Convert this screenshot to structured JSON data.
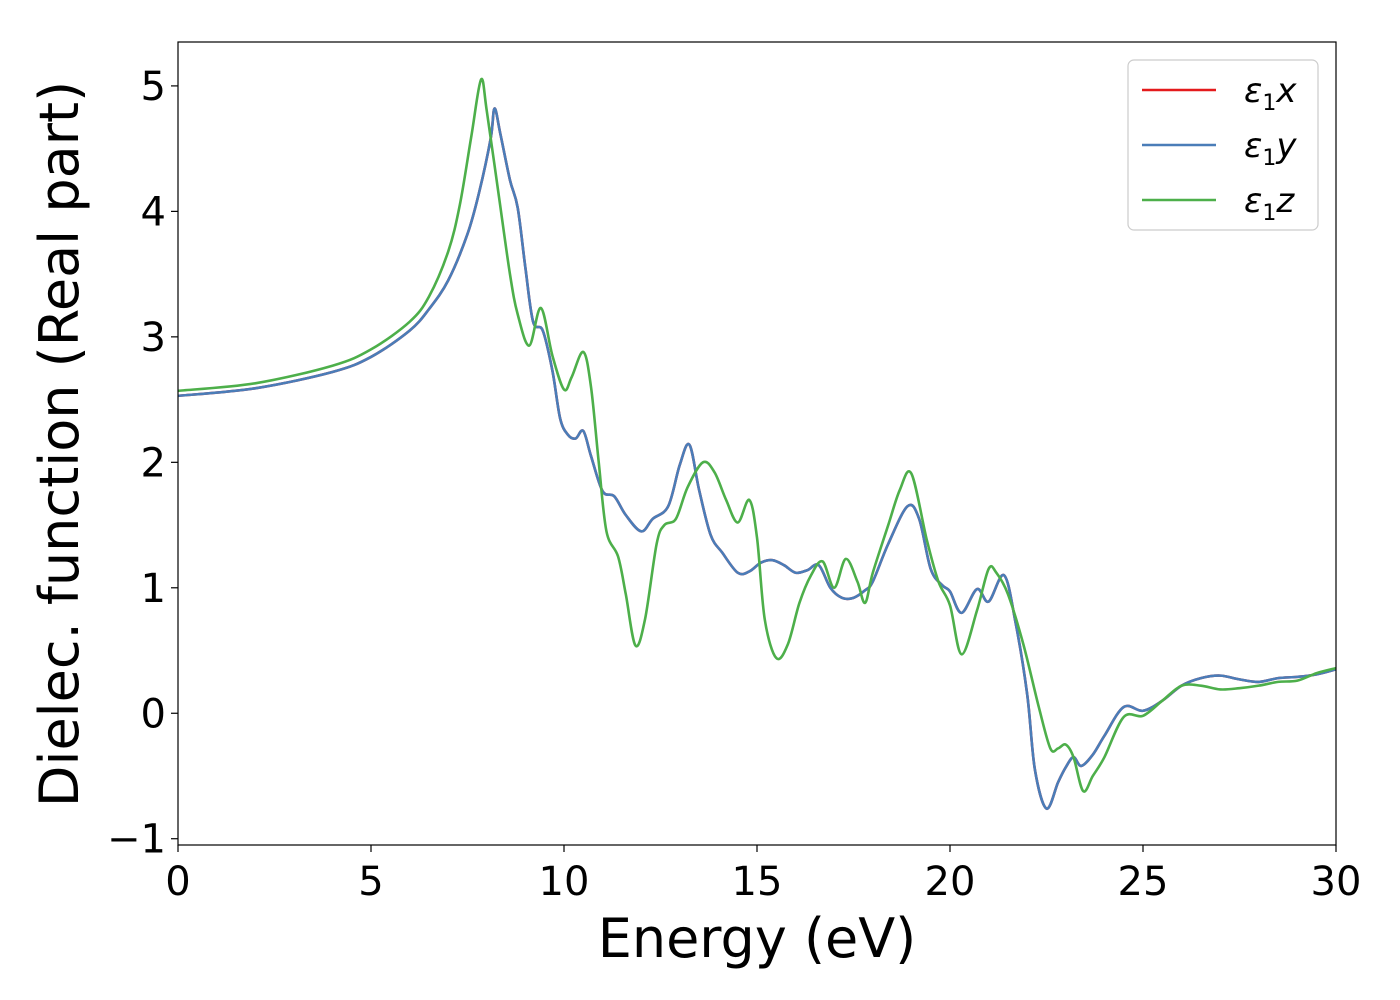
{
  "chart_data": {
    "type": "line",
    "title": "",
    "xlabel": "Energy (eV)",
    "ylabel": "Dielec. function (Real part)",
    "xlim": [
      0,
      30
    ],
    "ylim": [
      -1.05,
      5.35
    ],
    "grid": false,
    "legend_position": "top-right",
    "x_ticks": [
      {
        "value": 0,
        "label": "0"
      },
      {
        "value": 5,
        "label": "5"
      },
      {
        "value": 10,
        "label": "10"
      },
      {
        "value": 15,
        "label": "15"
      },
      {
        "value": 20,
        "label": "20"
      },
      {
        "value": 25,
        "label": "25"
      },
      {
        "value": 30,
        "label": "30"
      }
    ],
    "y_ticks": [
      {
        "value": -1,
        "label": "−1"
      },
      {
        "value": 0,
        "label": "0"
      },
      {
        "value": 1,
        "label": "1"
      },
      {
        "value": 2,
        "label": "2"
      },
      {
        "value": 3,
        "label": "3"
      },
      {
        "value": 4,
        "label": "4"
      },
      {
        "value": 5,
        "label": "5"
      }
    ],
    "series": [
      {
        "name": "ε₁x",
        "legend": {
          "base": "ε",
          "sub": "1",
          "axis": "x"
        },
        "color": "#e41a1c",
        "x": [
          0,
          2,
          4,
          5,
          6,
          6.5,
          7,
          7.5,
          7.8,
          8.1,
          8.2,
          8.35,
          8.6,
          8.8,
          9,
          9.2,
          9.45,
          9.7,
          9.9,
          10.1,
          10.3,
          10.5,
          10.7,
          11,
          11.3,
          11.6,
          12,
          12.3,
          12.7,
          13,
          13.25,
          13.5,
          13.8,
          14.1,
          14.5,
          14.8,
          15.1,
          15.4,
          15.7,
          16,
          16.3,
          16.6,
          16.9,
          17.2,
          17.5,
          17.8,
          18,
          18.4,
          18.9,
          19.2,
          19.5,
          19.8,
          20,
          20.3,
          20.7,
          21,
          21.4,
          21.7,
          22,
          22.2,
          22.5,
          22.8,
          23,
          23.2,
          23.4,
          23.7,
          24,
          24.5,
          25,
          25.5,
          26,
          26.5,
          27,
          27.5,
          28,
          28.5,
          29,
          29.5,
          30
        ],
        "y": [
          2.53,
          2.59,
          2.72,
          2.84,
          3.05,
          3.22,
          3.45,
          3.82,
          4.15,
          4.58,
          4.82,
          4.62,
          4.25,
          4.03,
          3.55,
          3.12,
          3.05,
          2.73,
          2.35,
          2.22,
          2.19,
          2.25,
          2.05,
          1.77,
          1.73,
          1.58,
          1.45,
          1.55,
          1.65,
          1.98,
          2.14,
          1.78,
          1.42,
          1.28,
          1.12,
          1.13,
          1.2,
          1.22,
          1.18,
          1.12,
          1.14,
          1.18,
          1.0,
          0.92,
          0.92,
          0.98,
          1.05,
          1.35,
          1.65,
          1.55,
          1.15,
          1.02,
          0.97,
          0.8,
          0.99,
          0.89,
          1.1,
          0.72,
          0.15,
          -0.45,
          -0.76,
          -0.55,
          -0.43,
          -0.35,
          -0.42,
          -0.33,
          -0.18,
          0.05,
          0.02,
          0.1,
          0.22,
          0.28,
          0.3,
          0.27,
          0.25,
          0.28,
          0.29,
          0.31,
          0.35
        ]
      },
      {
        "name": "ε₁y",
        "legend": {
          "base": "ε",
          "sub": "1",
          "axis": "y"
        },
        "color": "#4a7db8",
        "x": [
          0,
          2,
          4,
          5,
          6,
          6.5,
          7,
          7.5,
          7.8,
          8.1,
          8.2,
          8.35,
          8.6,
          8.8,
          9,
          9.2,
          9.45,
          9.7,
          9.9,
          10.1,
          10.3,
          10.5,
          10.7,
          11,
          11.3,
          11.6,
          12,
          12.3,
          12.7,
          13,
          13.25,
          13.5,
          13.8,
          14.1,
          14.5,
          14.8,
          15.1,
          15.4,
          15.7,
          16,
          16.3,
          16.6,
          16.9,
          17.2,
          17.5,
          17.8,
          18,
          18.4,
          18.9,
          19.2,
          19.5,
          19.8,
          20,
          20.3,
          20.7,
          21,
          21.4,
          21.7,
          22,
          22.2,
          22.5,
          22.8,
          23,
          23.2,
          23.4,
          23.7,
          24,
          24.5,
          25,
          25.5,
          26,
          26.5,
          27,
          27.5,
          28,
          28.5,
          29,
          29.5,
          30
        ],
        "y": [
          2.53,
          2.59,
          2.72,
          2.84,
          3.05,
          3.22,
          3.45,
          3.82,
          4.15,
          4.58,
          4.82,
          4.62,
          4.25,
          4.03,
          3.55,
          3.12,
          3.05,
          2.73,
          2.35,
          2.22,
          2.19,
          2.25,
          2.05,
          1.77,
          1.73,
          1.58,
          1.45,
          1.55,
          1.65,
          1.98,
          2.14,
          1.78,
          1.42,
          1.28,
          1.12,
          1.13,
          1.2,
          1.22,
          1.18,
          1.12,
          1.14,
          1.18,
          1.0,
          0.92,
          0.92,
          0.98,
          1.05,
          1.35,
          1.65,
          1.55,
          1.15,
          1.02,
          0.97,
          0.8,
          0.99,
          0.89,
          1.1,
          0.72,
          0.15,
          -0.45,
          -0.76,
          -0.55,
          -0.43,
          -0.35,
          -0.42,
          -0.33,
          -0.18,
          0.05,
          0.02,
          0.1,
          0.22,
          0.28,
          0.3,
          0.27,
          0.25,
          0.28,
          0.29,
          0.31,
          0.35
        ]
      },
      {
        "name": "ε₁z",
        "legend": {
          "base": "ε",
          "sub": "1",
          "axis": "z"
        },
        "color": "#4daf4a",
        "x": [
          0,
          2,
          4,
          5,
          6,
          6.5,
          7,
          7.3,
          7.6,
          7.85,
          8.0,
          8.3,
          8.6,
          8.8,
          9.1,
          9.4,
          9.7,
          10.0,
          10.2,
          10.5,
          10.7,
          10.9,
          11.1,
          11.4,
          11.6,
          11.85,
          12.1,
          12.4,
          12.6,
          12.9,
          13.2,
          13.6,
          13.9,
          14.2,
          14.5,
          14.8,
          15.0,
          15.2,
          15.5,
          15.8,
          16.1,
          16.4,
          16.7,
          17.0,
          17.3,
          17.6,
          17.8,
          18.0,
          18.4,
          18.7,
          19.0,
          19.4,
          19.7,
          20.0,
          20.3,
          20.7,
          21.0,
          21.2,
          21.5,
          21.9,
          22.3,
          22.6,
          22.8,
          23.0,
          23.2,
          23.45,
          23.7,
          24.0,
          24.5,
          25,
          25.5,
          26,
          26.5,
          27,
          27.5,
          28,
          28.5,
          29,
          29.5,
          30
        ],
        "y": [
          2.57,
          2.63,
          2.77,
          2.9,
          3.12,
          3.32,
          3.68,
          4.05,
          4.6,
          5.05,
          4.8,
          4.15,
          3.5,
          3.18,
          2.93,
          3.23,
          2.85,
          2.58,
          2.68,
          2.88,
          2.6,
          2.0,
          1.45,
          1.25,
          0.95,
          0.54,
          0.75,
          1.35,
          1.5,
          1.55,
          1.8,
          2.0,
          1.92,
          1.7,
          1.52,
          1.7,
          1.4,
          0.75,
          0.44,
          0.55,
          0.88,
          1.1,
          1.21,
          1.0,
          1.23,
          1.05,
          0.88,
          1.12,
          1.5,
          1.78,
          1.91,
          1.38,
          1.05,
          0.86,
          0.47,
          0.82,
          1.15,
          1.12,
          0.95,
          0.55,
          0.05,
          -0.28,
          -0.28,
          -0.25,
          -0.35,
          -0.62,
          -0.5,
          -0.35,
          -0.03,
          -0.02,
          0.1,
          0.22,
          0.22,
          0.19,
          0.2,
          0.22,
          0.25,
          0.26,
          0.32,
          0.36
        ]
      }
    ]
  }
}
